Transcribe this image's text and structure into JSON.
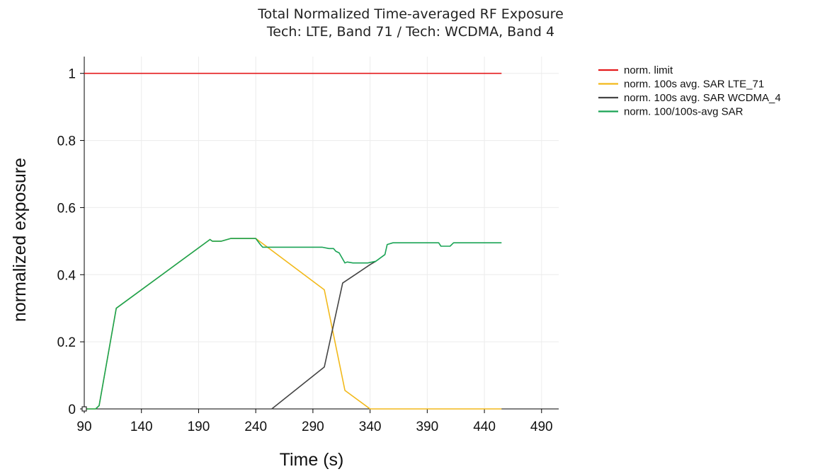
{
  "chart_data": {
    "type": "line",
    "title": "Total Normalized Time-averaged RF Exposure",
    "subtitle": "Tech: LTE, Band 71 / Tech: WCDMA, Band 4",
    "xlabel": "Time (s)",
    "ylabel": "normalized exposure",
    "xlim": [
      90,
      505
    ],
    "ylim": [
      0,
      1.05
    ],
    "xticks": [
      90,
      140,
      190,
      240,
      290,
      340,
      390,
      440,
      490
    ],
    "yticks": [
      0,
      0.2,
      0.4,
      0.6,
      0.8,
      1
    ],
    "ytick_labels": [
      "0",
      "0.2",
      "0.4",
      "0.6",
      "0.8",
      "1"
    ],
    "grid": true,
    "legend_position": "top-right",
    "series": [
      {
        "name": "norm. limit",
        "color": "#e41a1c",
        "x": [
          90,
          455
        ],
        "y": [
          1.0,
          1.0
        ]
      },
      {
        "name": "norm. 100s avg. SAR LTE_71",
        "color": "#f2b91a",
        "x": [
          90,
          100,
          103,
          118,
          200,
          202,
          210,
          218,
          240,
          300,
          318,
          340,
          455
        ],
        "y": [
          0,
          0,
          0.01,
          0.3,
          0.505,
          0.5,
          0.5,
          0.508,
          0.508,
          0.355,
          0.055,
          0,
          0
        ]
      },
      {
        "name": "norm. 100s avg. SAR WCDMA_4",
        "color": "#444444",
        "x": [
          254,
          300,
          316,
          340,
          345
        ],
        "y": [
          0,
          0.125,
          0.375,
          0.43,
          0.44
        ]
      },
      {
        "name": "norm. 100/100s-avg SAR",
        "color": "#1aa355",
        "x": [
          90,
          100,
          103,
          118,
          200,
          202,
          210,
          218,
          240,
          244,
          246,
          298,
          304,
          308,
          310,
          313,
          318,
          320,
          325,
          338,
          345,
          353,
          355,
          360,
          400,
          402,
          410,
          413,
          455
        ],
        "y": [
          0,
          0,
          0.01,
          0.3,
          0.505,
          0.5,
          0.5,
          0.508,
          0.508,
          0.49,
          0.482,
          0.482,
          0.478,
          0.478,
          0.47,
          0.465,
          0.435,
          0.438,
          0.435,
          0.435,
          0.44,
          0.46,
          0.49,
          0.495,
          0.495,
          0.485,
          0.485,
          0.495,
          0.495
        ]
      }
    ]
  }
}
